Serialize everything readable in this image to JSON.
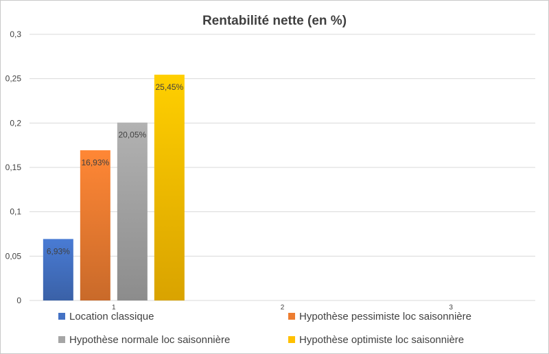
{
  "chart_data": {
    "type": "bar",
    "title": "Rentabilité nette (en %)",
    "categories": [
      "1",
      "2",
      "3"
    ],
    "ylim": [
      0,
      0.3
    ],
    "yticks": [
      "0",
      "0,05",
      "0,1",
      "0,15",
      "0,2",
      "0,25",
      "0,3"
    ],
    "grid": true,
    "legend_position": "bottom",
    "series": [
      {
        "name": "Location classique",
        "color": "#4472c4",
        "values": [
          0.0693,
          null,
          null
        ],
        "labels": [
          "6,93%",
          "",
          ""
        ]
      },
      {
        "name": "Hypothèse pessimiste loc saisonnière",
        "color": "#ed7d31",
        "values": [
          0.1693,
          null,
          null
        ],
        "labels": [
          "16,93%",
          "",
          ""
        ]
      },
      {
        "name": "Hypothèse normale loc saisonnière",
        "color": "#a5a5a5",
        "values": [
          0.2005,
          null,
          null
        ],
        "labels": [
          "20,05%",
          "",
          ""
        ]
      },
      {
        "name": "Hypothèse optimiste loc saisonnière",
        "color": "#ffc000",
        "values": [
          0.2545,
          null,
          null
        ],
        "labels": [
          "25,45%",
          "",
          ""
        ]
      }
    ]
  }
}
